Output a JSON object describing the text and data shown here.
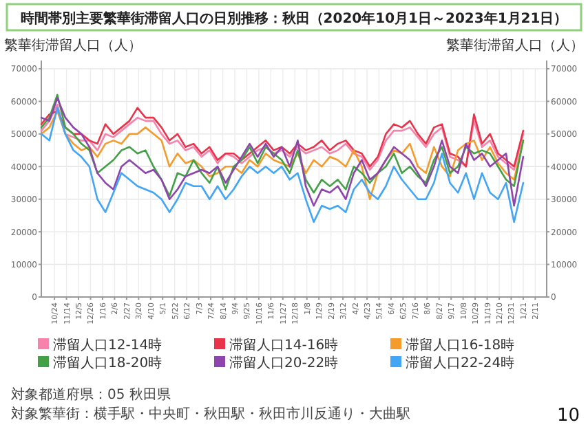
{
  "chart_data": {
    "type": "line",
    "title": "時間帯別主要繁華街滞留人口の日別推移：秋田（2020年10月1日～2023年1月21日）",
    "ylabel": "繁華街滞留人口（人）",
    "y2label": "繁華街滞留人口（人）",
    "x": [
      "2020-10-01",
      "2020-10-15",
      "2020-10-29",
      "2020-11-12",
      "2020-11-26",
      "2020-12-10",
      "2020-12-24",
      "2021-01-07",
      "2021-01-21",
      "2021-02-04",
      "2021-02-18",
      "2021-03-04",
      "2021-03-18",
      "2021-04-01",
      "2021-04-15",
      "2021-04-29",
      "2021-05-13",
      "2021-05-27",
      "2021-06-10",
      "2021-06-24",
      "2021-07-08",
      "2021-07-22",
      "2021-08-05",
      "2021-08-19",
      "2021-09-02",
      "2021-09-16",
      "2021-09-30",
      "2021-10-14",
      "2021-10-28",
      "2021-11-11",
      "2021-11-25",
      "2021-12-09",
      "2021-12-23",
      "2022-01-06",
      "2022-01-20",
      "2022-02-03",
      "2022-02-17",
      "2022-03-03",
      "2022-03-17",
      "2022-03-31",
      "2022-04-14",
      "2022-04-28",
      "2022-05-12",
      "2022-05-26",
      "2022-06-09",
      "2022-06-23",
      "2022-07-07",
      "2022-07-21",
      "2022-08-04",
      "2022-08-18",
      "2022-09-01",
      "2022-09-15",
      "2022-09-29",
      "2022-10-13",
      "2022-10-27",
      "2022-11-10",
      "2022-11-24",
      "2022-12-08",
      "2022-12-22",
      "2023-01-05",
      "2023-01-21"
    ],
    "series": [
      {
        "name": "滞留人口12-14時",
        "color": "#f783ac",
        "values": [
          51000,
          54000,
          59000,
          50000,
          49000,
          48000,
          48000,
          45000,
          50000,
          49000,
          51000,
          53000,
          55000,
          54000,
          54000,
          50000,
          47000,
          48000,
          45000,
          46000,
          43000,
          45000,
          41000,
          44000,
          43000,
          41000,
          43000,
          45000,
          46000,
          44000,
          45000,
          43000,
          46000,
          44000,
          45000,
          46000,
          44000,
          45000,
          47000,
          44000,
          43000,
          39000,
          42000,
          48000,
          51000,
          51000,
          52000,
          49000,
          46000,
          50000,
          52000,
          43000,
          42000,
          40000,
          54000,
          46000,
          48000,
          43000,
          41000,
          39000,
          50000
        ]
      },
      {
        "name": "滞留人口14-16時",
        "color": "#e8334a",
        "values": [
          53000,
          56000,
          57000,
          52000,
          50000,
          50000,
          48000,
          47000,
          53000,
          50000,
          52000,
          54000,
          58000,
          55000,
          55000,
          52000,
          48000,
          50000,
          46000,
          47000,
          44000,
          46000,
          42000,
          44000,
          44000,
          42000,
          44000,
          46000,
          48000,
          45000,
          46000,
          44000,
          47000,
          45000,
          46000,
          48000,
          45000,
          47000,
          48000,
          45000,
          44000,
          40000,
          43000,
          50000,
          53000,
          52000,
          54000,
          50000,
          47000,
          52000,
          53000,
          44000,
          43000,
          40000,
          56000,
          47000,
          50000,
          44000,
          42000,
          40000,
          51000
        ]
      },
      {
        "name": "滞留人口16-18時",
        "color": "#f59b2b",
        "values": [
          50000,
          52000,
          57000,
          50000,
          47000,
          45000,
          46000,
          43000,
          47000,
          48000,
          47000,
          50000,
          50000,
          52000,
          50000,
          48000,
          40000,
          44000,
          41000,
          42000,
          40000,
          37000,
          38000,
          40000,
          40000,
          38000,
          42000,
          40000,
          44000,
          42000,
          41000,
          40000,
          44000,
          38000,
          42000,
          40000,
          43000,
          42000,
          40000,
          45000,
          40000,
          30000,
          38000,
          42000,
          45000,
          44000,
          47000,
          40000,
          38000,
          46000,
          40000,
          37000,
          45000,
          47000,
          48000,
          42000,
          46000,
          41000,
          38000,
          36000,
          48000
        ]
      },
      {
        "name": "滞留人口18-20時",
        "color": "#43a047",
        "values": [
          52000,
          55000,
          62000,
          52000,
          50000,
          47000,
          45000,
          38000,
          40000,
          42000,
          45000,
          46000,
          44000,
          45000,
          40000,
          36000,
          31000,
          38000,
          37000,
          42000,
          38000,
          35000,
          40000,
          33000,
          40000,
          42000,
          46000,
          41000,
          46000,
          44000,
          42000,
          38000,
          45000,
          36000,
          32000,
          36000,
          34000,
          36000,
          33000,
          40000,
          38000,
          35000,
          38000,
          40000,
          44000,
          38000,
          40000,
          37000,
          35000,
          42000,
          46000,
          38000,
          40000,
          46000,
          44000,
          45000,
          44000,
          40000,
          36000,
          34000,
          48000
        ]
      },
      {
        "name": "滞留人口20-22時",
        "color": "#8e44ad",
        "values": [
          55000,
          54000,
          61000,
          55000,
          52000,
          50000,
          46000,
          38000,
          35000,
          33000,
          40000,
          42000,
          40000,
          38000,
          39000,
          36000,
          30000,
          33000,
          37000,
          38000,
          39000,
          38000,
          40000,
          35000,
          39000,
          43000,
          47000,
          43000,
          47000,
          43000,
          46000,
          40000,
          48000,
          34000,
          28000,
          33000,
          32000,
          34000,
          30000,
          38000,
          42000,
          36000,
          38000,
          42000,
          46000,
          44000,
          42000,
          38000,
          34000,
          40000,
          48000,
          40000,
          38000,
          47000,
          42000,
          44000,
          40000,
          42000,
          44000,
          28000,
          43000
        ]
      },
      {
        "name": "滞留人口22-24時",
        "color": "#42a5f5",
        "values": [
          50000,
          48000,
          58000,
          50000,
          45000,
          43000,
          40000,
          30000,
          26000,
          32000,
          38000,
          36000,
          34000,
          33000,
          32000,
          30000,
          26000,
          30000,
          35000,
          34000,
          34000,
          30000,
          34000,
          30000,
          33000,
          37000,
          40000,
          38000,
          40000,
          38000,
          40000,
          36000,
          38000,
          30000,
          23000,
          28000,
          27000,
          28000,
          26000,
          33000,
          36000,
          32000,
          30000,
          34000,
          40000,
          36000,
          33000,
          30000,
          30000,
          35000,
          44000,
          35000,
          32000,
          38000,
          30000,
          38000,
          32000,
          30000,
          35000,
          23000,
          35000
        ]
      }
    ],
    "xlim": [
      "2020-10-01",
      "2023-03-03"
    ],
    "xticks": [
      {
        "value": "2020-10-24",
        "label": "10/24"
      },
      {
        "value": "2020-11-14",
        "label": "11/14"
      },
      {
        "value": "2020-12-05",
        "label": "12/5"
      },
      {
        "value": "2020-12-26",
        "label": "12/26"
      },
      {
        "value": "2021-01-16",
        "label": "1/16"
      },
      {
        "value": "2021-02-06",
        "label": "2/6"
      },
      {
        "value": "2021-02-27",
        "label": "2/27"
      },
      {
        "value": "2021-03-20",
        "label": "3/20"
      },
      {
        "value": "2021-04-10",
        "label": "4/10"
      },
      {
        "value": "2021-05-01",
        "label": "5/1"
      },
      {
        "value": "2021-05-22",
        "label": "5/22"
      },
      {
        "value": "2021-06-12",
        "label": "6/12"
      },
      {
        "value": "2021-07-03",
        "label": "7/3"
      },
      {
        "value": "2021-07-24",
        "label": "7/24"
      },
      {
        "value": "2021-08-14",
        "label": "8/14"
      },
      {
        "value": "2021-09-04",
        "label": "9/4"
      },
      {
        "value": "2021-09-25",
        "label": "9/25"
      },
      {
        "value": "2021-10-16",
        "label": "10/16"
      },
      {
        "value": "2021-11-06",
        "label": "11/6"
      },
      {
        "value": "2021-11-27",
        "label": "11/27"
      },
      {
        "value": "2021-12-18",
        "label": "12/18"
      },
      {
        "value": "2022-01-08",
        "label": "1/8"
      },
      {
        "value": "2022-01-29",
        "label": "1/29"
      },
      {
        "value": "2022-02-19",
        "label": "2/19"
      },
      {
        "value": "2022-03-12",
        "label": "3/12"
      },
      {
        "value": "2022-04-02",
        "label": "4/2"
      },
      {
        "value": "2022-04-23",
        "label": "4/23"
      },
      {
        "value": "2022-05-14",
        "label": "5/14"
      },
      {
        "value": "2022-06-04",
        "label": "6/4"
      },
      {
        "value": "2022-06-25",
        "label": "6/25"
      },
      {
        "value": "2022-07-16",
        "label": "7/16"
      },
      {
        "value": "2022-08-06",
        "label": "8/6"
      },
      {
        "value": "2022-08-27",
        "label": "8/27"
      },
      {
        "value": "2022-09-17",
        "label": "9/17"
      },
      {
        "value": "2022-10-08",
        "label": "10/8"
      },
      {
        "value": "2022-10-29",
        "label": "10/29"
      },
      {
        "value": "2022-11-19",
        "label": "11/19"
      },
      {
        "value": "2022-12-10",
        "label": "12/10"
      },
      {
        "value": "2022-12-31",
        "label": "12/31"
      },
      {
        "value": "2023-01-21",
        "label": "1/21"
      },
      {
        "value": "2023-02-11",
        "label": "2/11"
      }
    ],
    "ylim": [
      0,
      70000
    ],
    "yticks": [
      0,
      10000,
      20000,
      30000,
      40000,
      50000,
      60000,
      70000
    ],
    "y2lim": [
      0,
      70000
    ],
    "y2ticks": [
      0,
      10000,
      20000,
      30000,
      40000,
      50000,
      60000,
      70000
    ],
    "grid": true,
    "legend": "bottom",
    "line_style": "solid",
    "annotations": [
      "対象都道府県：05 秋田県",
      "対象繁華街：横手駅・中央町・秋田駅・秋田市川反通り・大曲駅",
      "10"
    ]
  }
}
